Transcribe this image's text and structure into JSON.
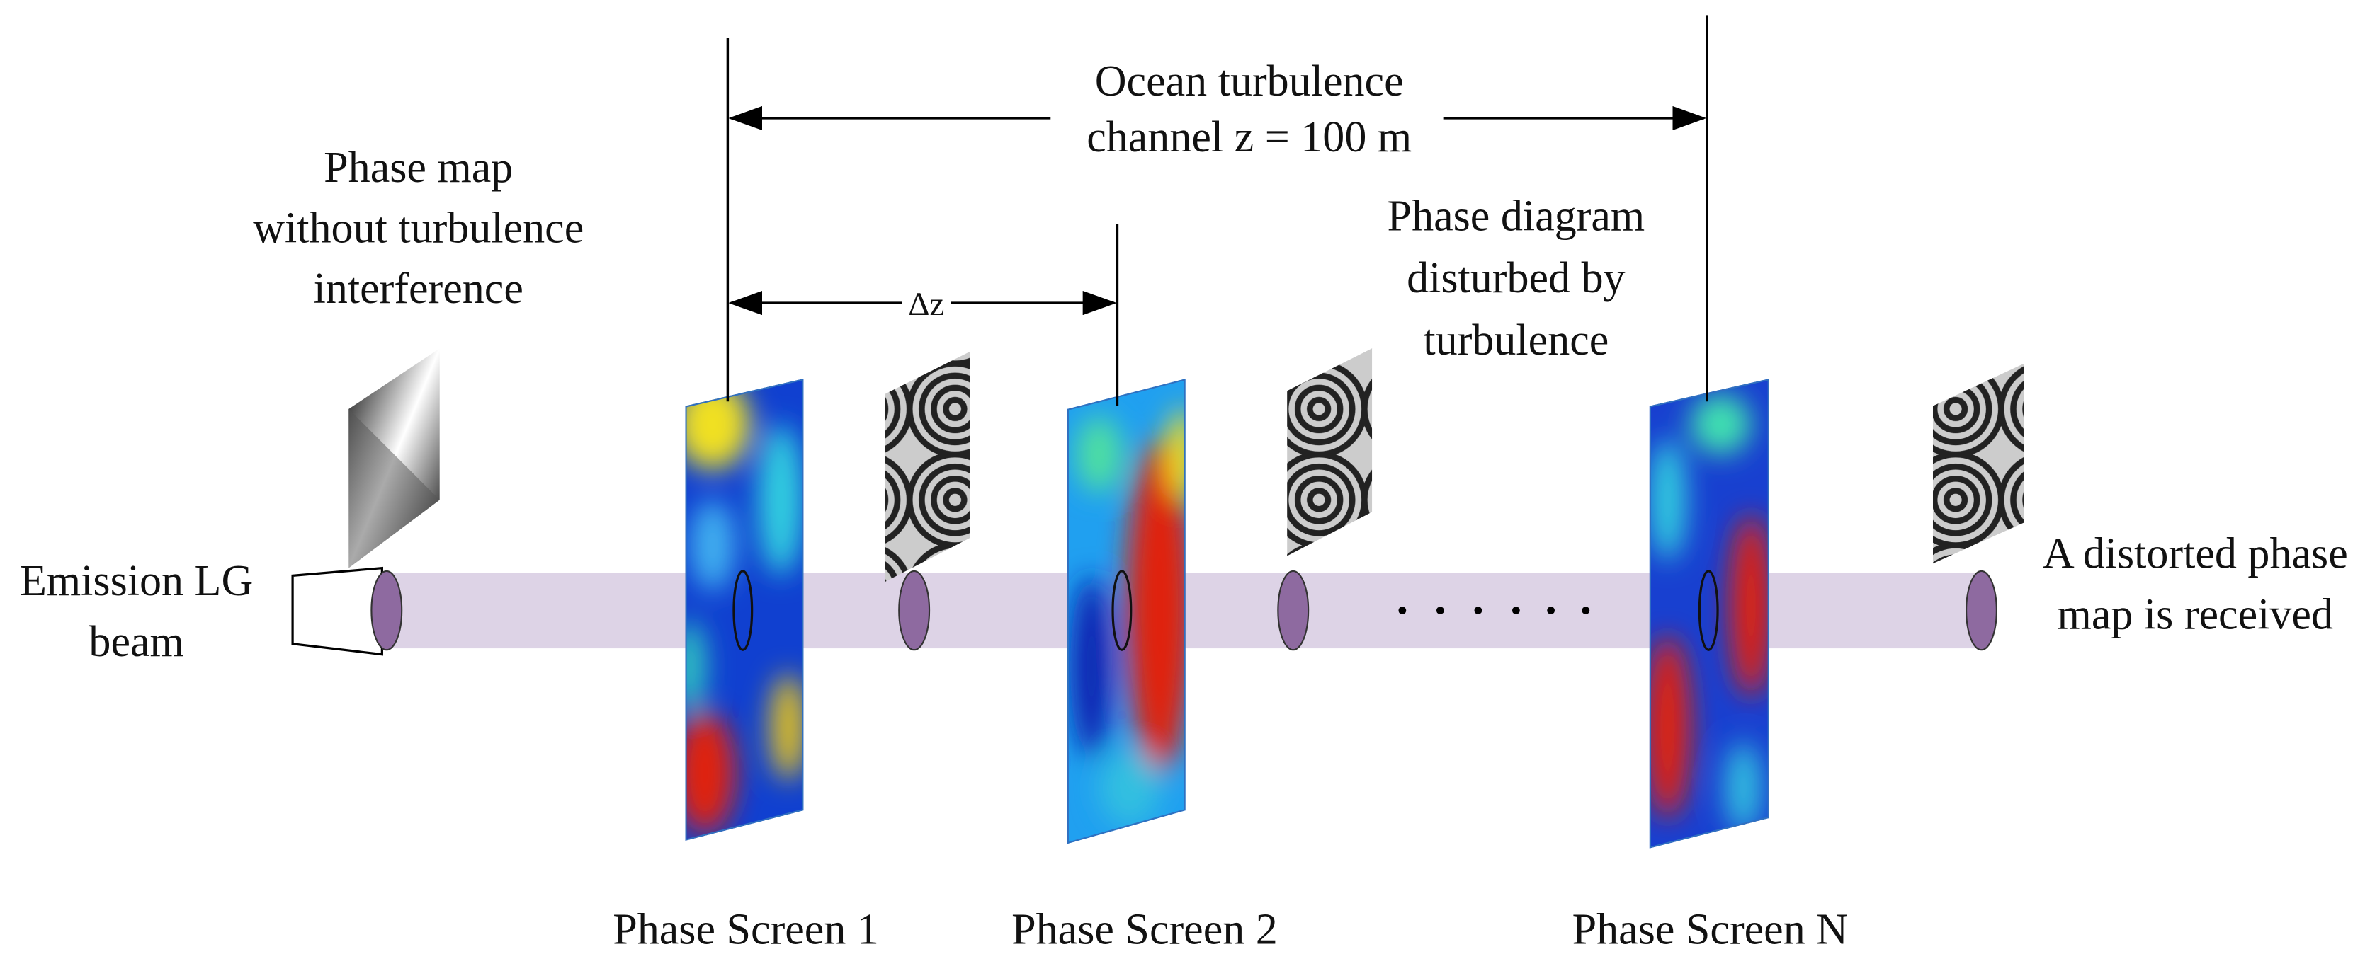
{
  "channel_label": [
    "Ocean turbulence",
    "channel z = 100 m"
  ],
  "spacing_label": "Δz",
  "clean_phase_label": [
    "Phase map",
    "without turbulence",
    "interference"
  ],
  "disturbed_phase_label": [
    "Phase diagram",
    "disturbed by",
    "turbulence"
  ],
  "source_label": [
    "Emission LG",
    "beam"
  ],
  "receiver_label": [
    "A distorted phase",
    "map is received"
  ],
  "screens": [
    "Phase Screen 1",
    "Phase Screen 2",
    "Phase Screen N"
  ]
}
